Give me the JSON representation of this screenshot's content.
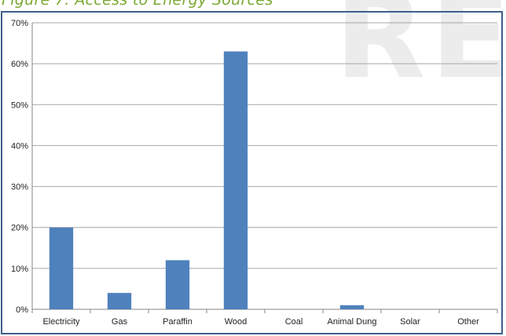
{
  "caption": "Figure 7: Access to Energy Sources",
  "watermark": "RE",
  "chart_data": {
    "type": "bar",
    "categories": [
      "Electricity",
      "Gas",
      "Paraffin",
      "Wood",
      "Coal",
      "Animal Dung",
      "Solar",
      "Other"
    ],
    "values": [
      20,
      4,
      12,
      63,
      0,
      1,
      0,
      0
    ],
    "ylim": [
      0,
      70
    ],
    "yticks": [
      0,
      10,
      20,
      30,
      40,
      50,
      60,
      70
    ],
    "ytick_format": "{v}%",
    "grid": true,
    "bar_color": "#4f81bd",
    "title": "",
    "xlabel": "",
    "ylabel": ""
  }
}
